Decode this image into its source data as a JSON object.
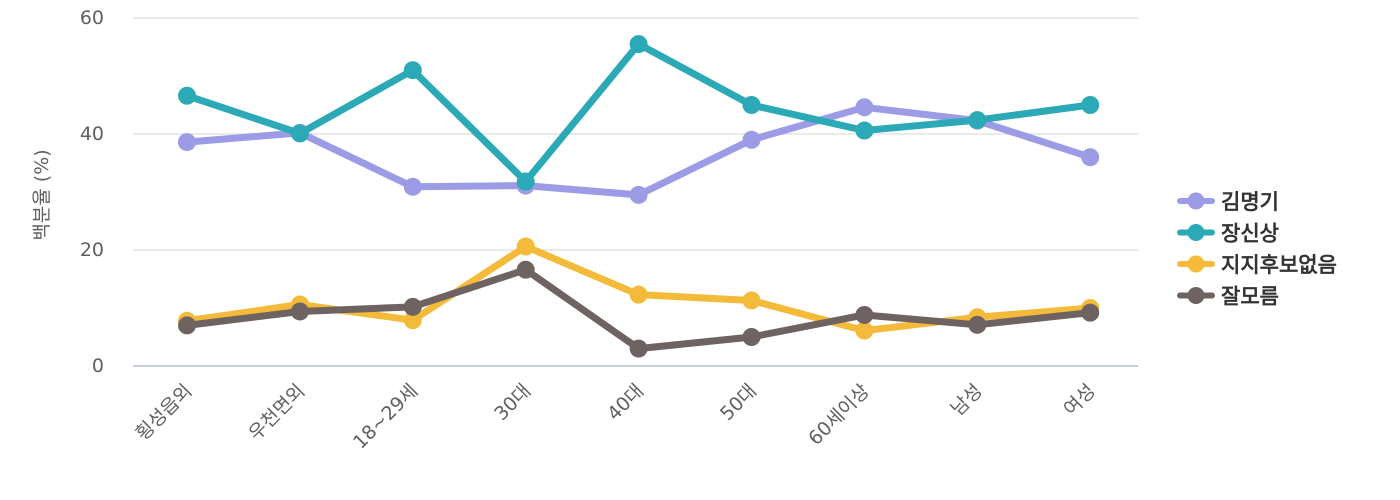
{
  "chart_data": {
    "type": "line",
    "title": "",
    "xlabel": "",
    "ylabel": "백분율 (%)",
    "ylim": [
      0,
      60
    ],
    "yticks": [
      0,
      20,
      40,
      60
    ],
    "grid": true,
    "legend_position": "right",
    "categories": [
      "횡성읍외",
      "우천면외",
      "18~29세",
      "30대",
      "40대",
      "50대",
      "60세이상",
      "남성",
      "여성"
    ],
    "series": [
      {
        "name": "김명기",
        "color": "#9b9be6",
        "values": [
          38.6,
          40.2,
          30.9,
          31.1,
          29.5,
          39.0,
          44.6,
          42.3,
          36.0
        ]
      },
      {
        "name": "장신상",
        "color": "#2ba9b6",
        "values": [
          46.6,
          40.1,
          51.0,
          31.8,
          55.5,
          45.0,
          40.6,
          42.4,
          45.0
        ]
      },
      {
        "name": "지지후보없음",
        "color": "#f4bb3a",
        "values": [
          7.8,
          10.6,
          7.9,
          20.6,
          12.3,
          11.3,
          6.1,
          8.4,
          10.0
        ]
      },
      {
        "name": "잘모름",
        "color": "#6e6361",
        "values": [
          7.0,
          9.4,
          10.2,
          16.6,
          3.0,
          5.0,
          8.8,
          7.1,
          9.2
        ]
      }
    ]
  }
}
